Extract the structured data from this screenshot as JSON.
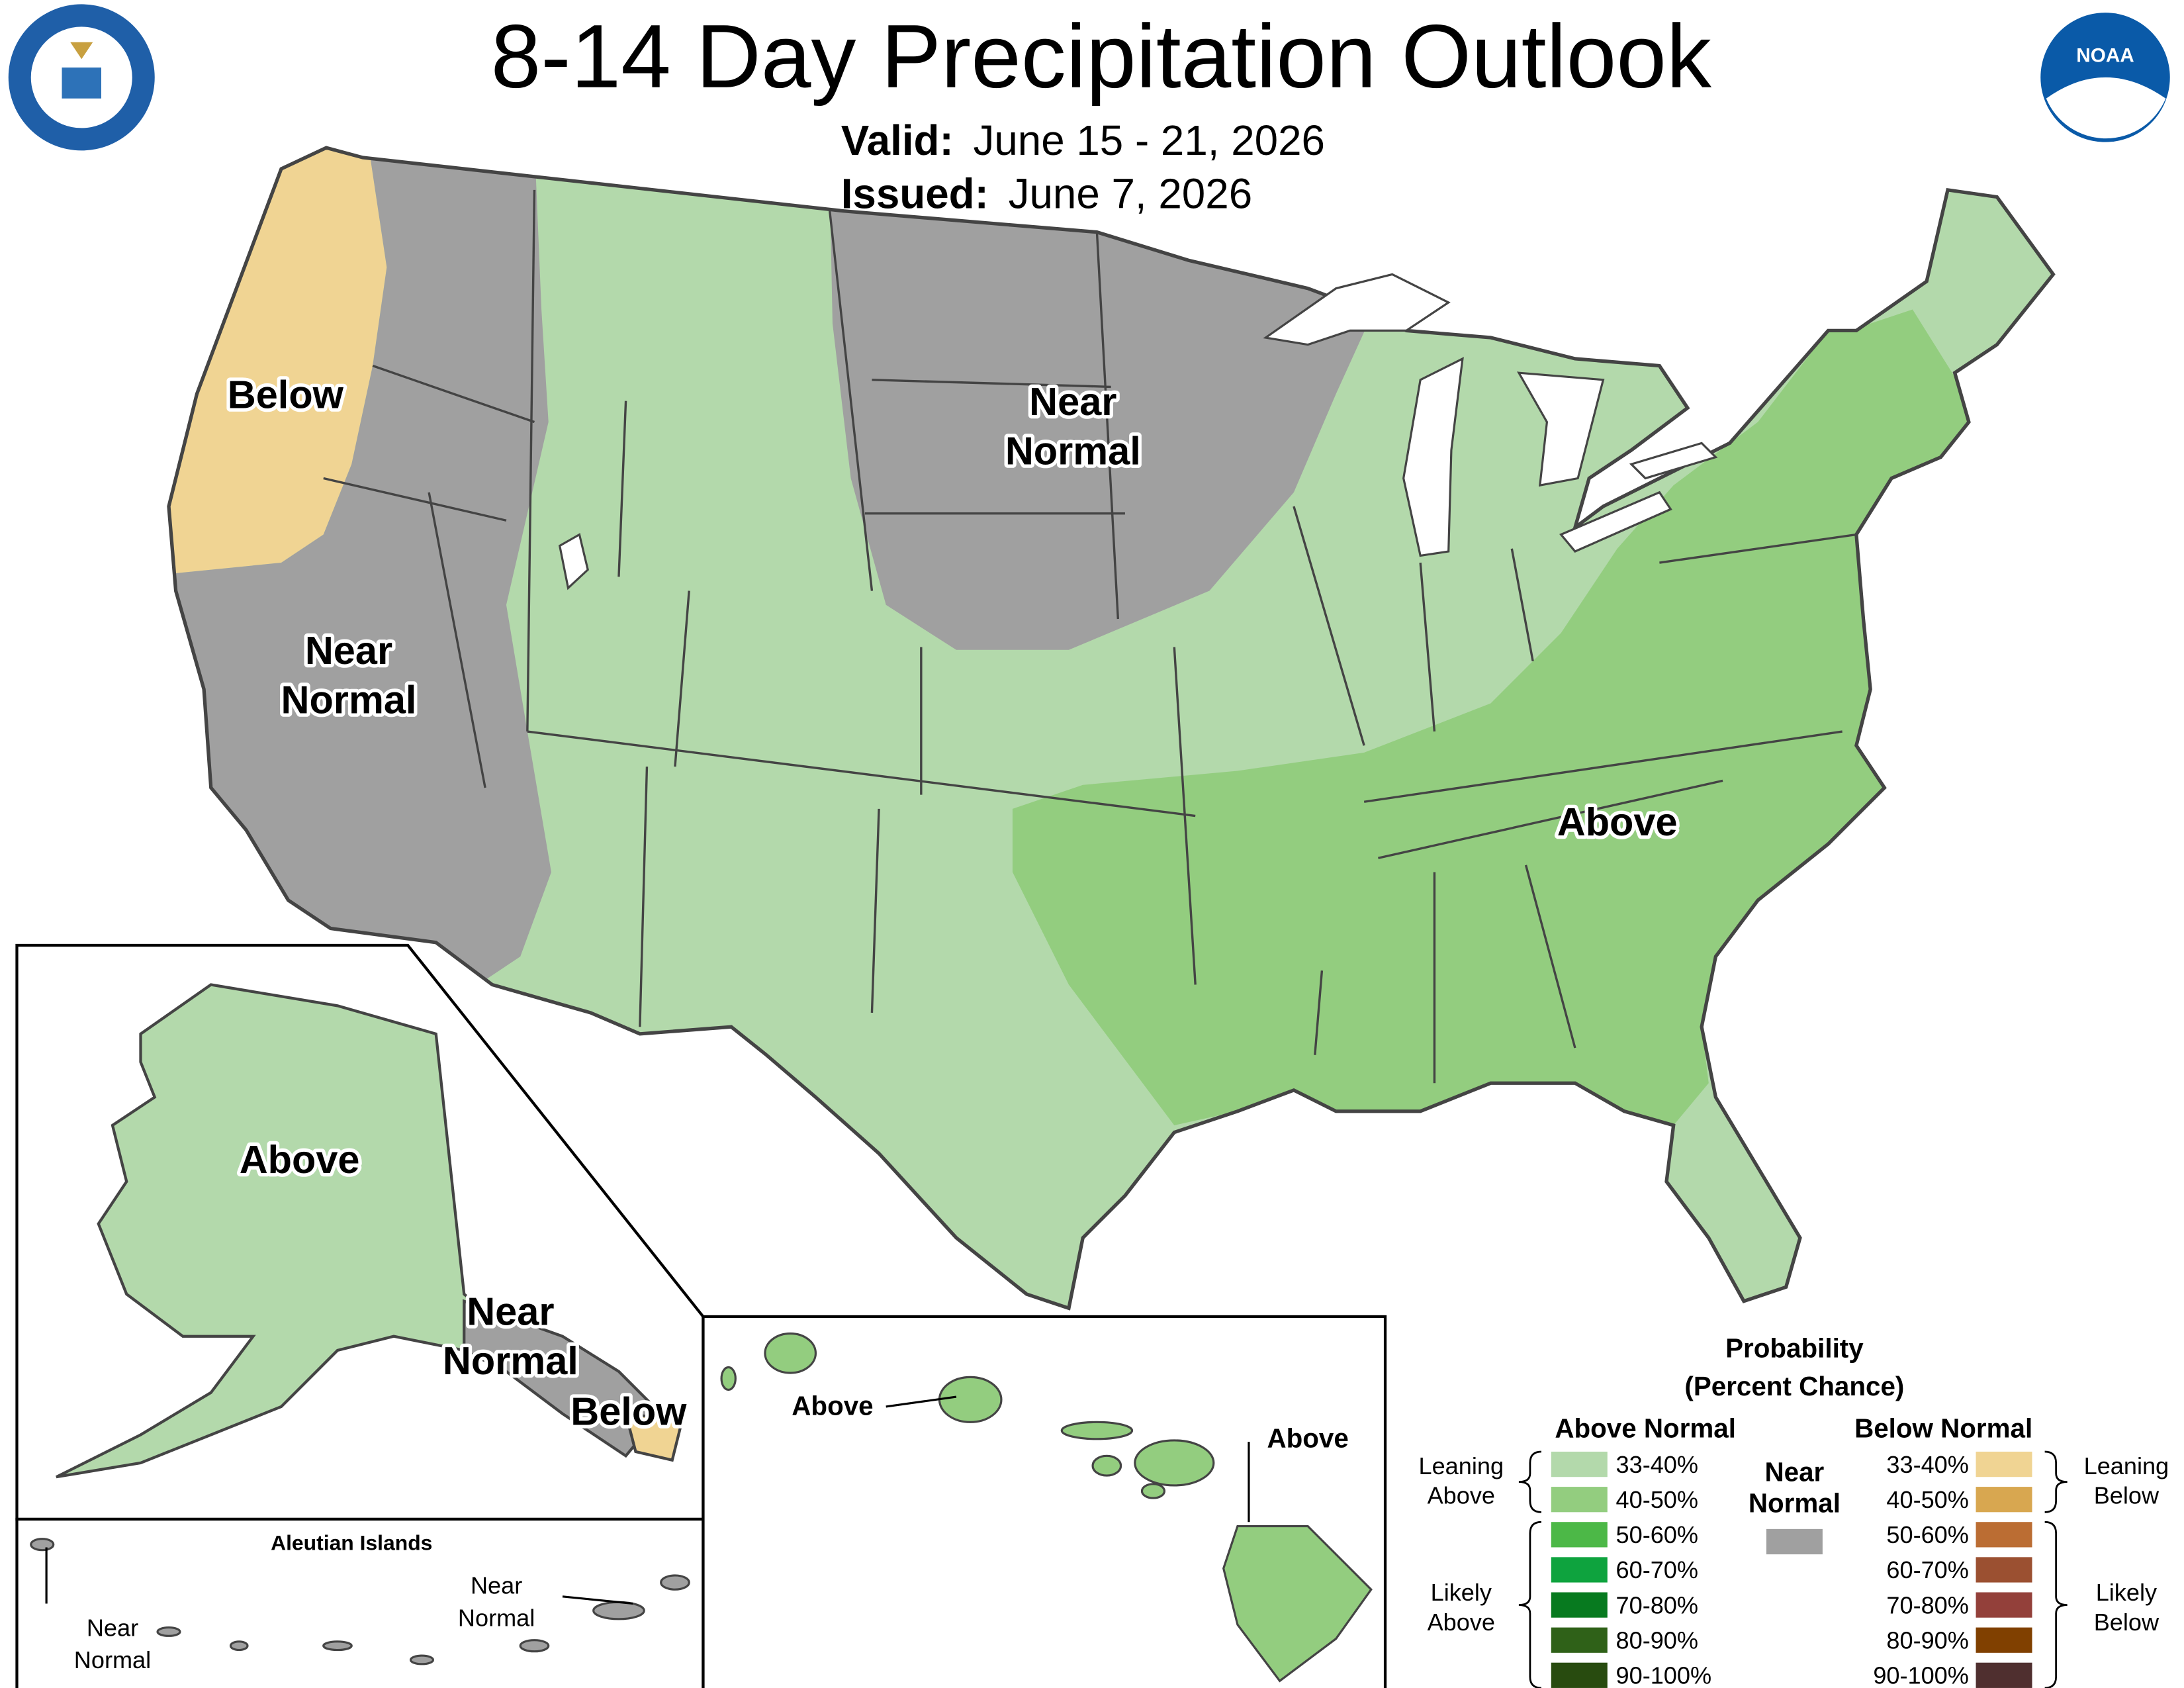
{
  "header": {
    "title": "8-14 Day Precipitation Outlook",
    "valid_label": "Valid:",
    "valid": "June 15 - 21, 2026",
    "issued_label": "Issued:",
    "issued": "June 7, 2026"
  },
  "logos": {
    "noaa": "NOAA"
  },
  "conus": {
    "labels": [
      {
        "lines": [
          "Below"
        ]
      },
      {
        "lines": [
          "Near",
          "Normal"
        ]
      },
      {
        "lines": [
          "Near",
          "Normal"
        ]
      },
      {
        "lines": [
          "Above"
        ]
      }
    ]
  },
  "alaska": {
    "labels": [
      {
        "lines": [
          "Above"
        ]
      },
      {
        "lines": [
          "Near",
          "Normal"
        ]
      },
      {
        "lines": [
          "Below"
        ]
      }
    ],
    "aleutian_title": "Aleutian Islands",
    "aleutian_labels": [
      {
        "lines": [
          "Near",
          "Normal"
        ]
      },
      {
        "lines": [
          "Near",
          "Normal"
        ]
      }
    ]
  },
  "hawaii": {
    "labels": [
      {
        "lines": [
          "Above"
        ]
      },
      {
        "lines": [
          "Above"
        ]
      }
    ]
  },
  "legend": {
    "title": "Probability",
    "subtitle": "(Percent Chance)",
    "above_heading": "Above Normal",
    "below_heading": "Below Normal",
    "near": {
      "lines": [
        "Near",
        "Normal"
      ],
      "color": "#a0a0a0"
    },
    "leaning_above": [
      "Leaning",
      "Above"
    ],
    "likely_above": [
      "Likely",
      "Above"
    ],
    "leaning_below": [
      "Leaning",
      "Below"
    ],
    "likely_below": [
      "Likely",
      "Below"
    ],
    "above": [
      {
        "label": "33-40%",
        "color": "#b3d9ab"
      },
      {
        "label": "40-50%",
        "color": "#93cd7f"
      },
      {
        "label": "50-60%",
        "color": "#4cb847"
      },
      {
        "label": "60-70%",
        "color": "#0ea33e"
      },
      {
        "label": "70-80%",
        "color": "#077a1f"
      },
      {
        "label": "80-90%",
        "color": "#2f6118"
      },
      {
        "label": "90-100%",
        "color": "#284b0f"
      }
    ],
    "below": [
      {
        "label": "33-40%",
        "color": "#f0d493"
      },
      {
        "label": "40-50%",
        "color": "#d8a750"
      },
      {
        "label": "50-60%",
        "color": "#bb6d33"
      },
      {
        "label": "60-70%",
        "color": "#9b5031"
      },
      {
        "label": "70-80%",
        "color": "#93403a"
      },
      {
        "label": "80-90%",
        "color": "#804000"
      },
      {
        "label": "90-100%",
        "color": "#4f2f2f"
      }
    ]
  }
}
